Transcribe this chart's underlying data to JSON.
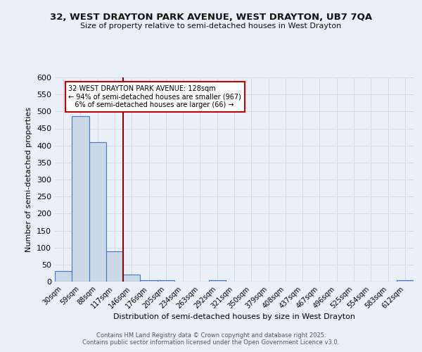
{
  "title_line1": "32, WEST DRAYTON PARK AVENUE, WEST DRAYTON, UB7 7QA",
  "title_line2": "Size of property relative to semi-detached houses in West Drayton",
  "xlabel": "Distribution of semi-detached houses by size in West Drayton",
  "ylabel": "Number of semi-detached properties",
  "categories": [
    "30sqm",
    "59sqm",
    "88sqm",
    "117sqm",
    "146sqm",
    "176sqm",
    "205sqm",
    "234sqm",
    "263sqm",
    "292sqm",
    "321sqm",
    "350sqm",
    "379sqm",
    "408sqm",
    "437sqm",
    "467sqm",
    "496sqm",
    "525sqm",
    "554sqm",
    "583sqm",
    "612sqm"
  ],
  "values": [
    32,
    487,
    410,
    88,
    20,
    5,
    4,
    0,
    0,
    5,
    0,
    0,
    0,
    0,
    0,
    0,
    0,
    0,
    0,
    0,
    5
  ],
  "bar_color": "#c9d9e8",
  "bar_edge_color": "#4472c4",
  "grid_color": "#d0d8e8",
  "background_color": "#eaf0f8",
  "vline_color": "#8b0000",
  "vline_x_index": 3.5,
  "annotation_text_line1": "32 WEST DRAYTON PARK AVENUE: 128sqm",
  "annotation_text_line2": "← 94% of semi-detached houses are smaller (967)",
  "annotation_text_line3": "   6% of semi-detached houses are larger (66) →",
  "annotation_box_color": "#ffffff",
  "annotation_box_edge": "#cc0000",
  "ylim": [
    0,
    600
  ],
  "yticks": [
    0,
    50,
    100,
    150,
    200,
    250,
    300,
    350,
    400,
    450,
    500,
    550,
    600
  ],
  "footer_line1": "Contains HM Land Registry data © Crown copyright and database right 2025.",
  "footer_line2": "Contains public sector information licensed under the Open Government Licence v3.0."
}
